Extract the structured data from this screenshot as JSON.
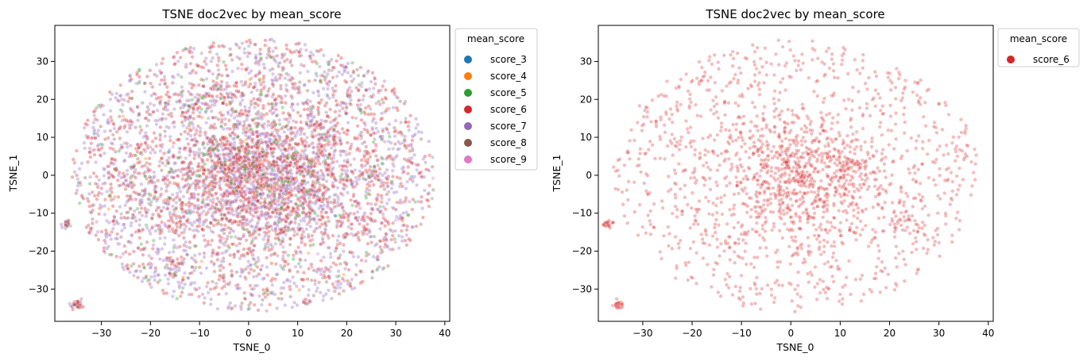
{
  "chart_data": [
    {
      "type": "scatter",
      "title": "TSNE doc2vec by mean_score",
      "xlabel": "TSNE_0",
      "ylabel": "TSNE_1",
      "xlim": [
        -39.5,
        41
      ],
      "ylim": [
        -38.5,
        39.5
      ],
      "xticks": [
        "−30",
        "−20",
        "−10",
        "0",
        "10",
        "20",
        "30",
        "40"
      ],
      "yticks": [
        "−30",
        "−20",
        "−10",
        "0",
        "10",
        "20",
        "30"
      ],
      "grid": false,
      "legend": {
        "title": "mean_score",
        "placement": "outside-top-right",
        "entries": [
          {
            "label": "score_3",
            "color": "#1f77b4"
          },
          {
            "label": "score_4",
            "color": "#ff7f0e"
          },
          {
            "label": "score_5",
            "color": "#2ca02c"
          },
          {
            "label": "score_6",
            "color": "#d62728"
          },
          {
            "label": "score_7",
            "color": "#9467bd"
          },
          {
            "label": "score_8",
            "color": "#8c564b"
          },
          {
            "label": "score_9",
            "color": "#e377c2"
          }
        ]
      },
      "point_alpha": 0.35,
      "series": [
        {
          "name": "score_7",
          "color": "#9467bd",
          "approx_count": 2400
        },
        {
          "name": "score_6",
          "color": "#d62728",
          "approx_count": 2000
        },
        {
          "name": "score_8",
          "color": "#8c564b",
          "approx_count": 450
        },
        {
          "name": "score_5",
          "color": "#2ca02c",
          "approx_count": 200
        },
        {
          "name": "score_4",
          "color": "#ff7f0e",
          "approx_count": 40
        },
        {
          "name": "score_9",
          "color": "#e377c2",
          "approx_count": 25
        },
        {
          "name": "score_3",
          "color": "#1f77b4",
          "approx_count": 5
        }
      ],
      "clusters": [
        {
          "x": -37.0,
          "y": -12.8
        },
        {
          "x": -35.0,
          "y": -34.0
        },
        {
          "x": -25.0,
          "y": 2.0
        },
        {
          "x": -22.0,
          "y": -6.0
        },
        {
          "x": -16.0,
          "y": -25.0
        },
        {
          "x": -15.0,
          "y": -10.0
        },
        {
          "x": -13.0,
          "y": 17.0
        },
        {
          "x": -8.0,
          "y": 21.0
        },
        {
          "x": 0.0,
          "y": 2.5
        },
        {
          "x": 11.0,
          "y": 1.5
        },
        {
          "x": 13.0,
          "y": -7.0
        },
        {
          "x": 24.5,
          "y": -12.5
        },
        {
          "x": 25.0,
          "y": 0.0
        },
        {
          "x": 15.0,
          "y": 12.0
        }
      ]
    },
    {
      "type": "scatter",
      "title": "TSNE doc2vec by mean_score",
      "xlabel": "TSNE_0",
      "ylabel": "TSNE_1",
      "xlim": [
        -39.0,
        41
      ],
      "ylim": [
        -38.5,
        39.5
      ],
      "xticks": [
        "−30",
        "−20",
        "−10",
        "0",
        "10",
        "20",
        "30",
        "40"
      ],
      "yticks": [
        "−30",
        "−20",
        "−10",
        "0",
        "10",
        "20",
        "30"
      ],
      "grid": false,
      "legend": {
        "title": "mean_score",
        "placement": "outside-top-right",
        "entries": [
          {
            "label": "score_6",
            "color": "#d62728"
          }
        ]
      },
      "point_alpha": 0.3,
      "series": [
        {
          "name": "score_6",
          "color": "#d62728",
          "approx_count": 1900
        }
      ],
      "clusters": [
        {
          "x": -37.0,
          "y": -12.8
        },
        {
          "x": -35.0,
          "y": -34.0
        },
        {
          "x": 0.0,
          "y": 3.0
        },
        {
          "x": 24.0,
          "y": -12.5
        },
        {
          "x": 12.0,
          "y": 2.0
        }
      ]
    }
  ]
}
